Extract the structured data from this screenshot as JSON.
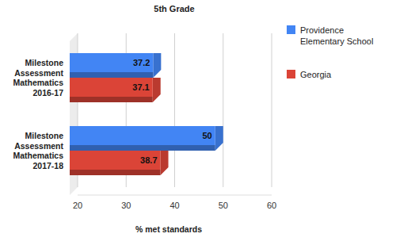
{
  "chart_data": {
    "type": "bar",
    "title": "5th Grade",
    "orientation": "horizontal",
    "categories": [
      "Milestone Assessment Mathematics 2016-17",
      "Milestone Assessment Mathematics 2017-18"
    ],
    "series": [
      {
        "name": "Providence Elementary School",
        "color": "#4285f4",
        "values": [
          37.2,
          50
        ]
      },
      {
        "name": "Georgia",
        "color": "#db4437",
        "values": [
          37.1,
          38.7
        ]
      }
    ],
    "x_label": "% met standards",
    "xlim": [
      20,
      60
    ],
    "xticks": [
      20,
      30,
      40,
      50,
      60
    ],
    "grid": true,
    "legend": "right",
    "data_labels": true
  }
}
